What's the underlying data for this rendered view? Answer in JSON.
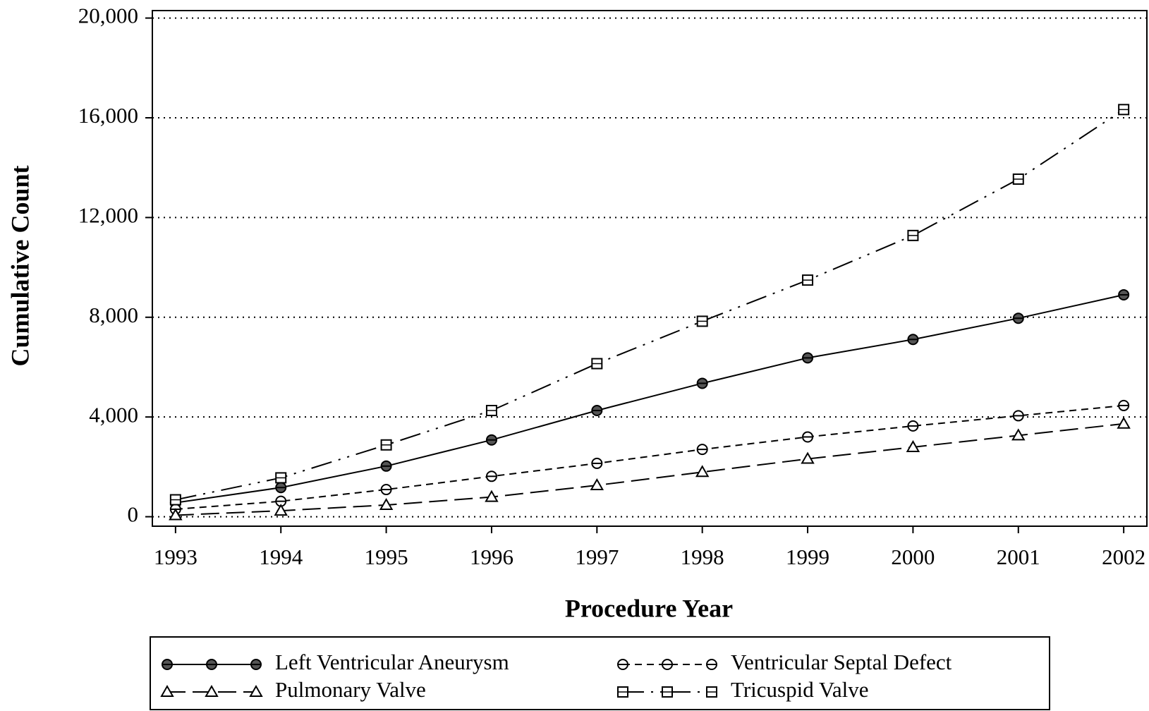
{
  "chart_data": {
    "type": "line",
    "x_label": "Procedure Year",
    "y_label": "Cumulative Count",
    "x": [
      1993,
      1994,
      1995,
      1996,
      1997,
      1998,
      1999,
      2000,
      2001,
      2002
    ],
    "xlim": [
      1992.78,
      2002.22
    ],
    "xticks": [
      1993,
      1994,
      1995,
      1996,
      1997,
      1998,
      1999,
      2000,
      2001,
      2002
    ],
    "ylim": [
      -380,
      20300
    ],
    "yticks": [
      0,
      {
        "value": 4000,
        "label": "4,000"
      },
      {
        "value": 8000,
        "label": "8,000"
      },
      {
        "value": 12000,
        "label": "12,000"
      },
      {
        "value": 16000,
        "label": "16,000"
      },
      {
        "value": 20000,
        "label": "20,000"
      }
    ],
    "grid": true,
    "series": [
      {
        "name": "Left Ventricular Aneurysm",
        "color": "#000000",
        "dash": "solid",
        "marker": "filled-circle",
        "values": [
          560,
          1170,
          2030,
          3080,
          4260,
          5350,
          6370,
          7110,
          7960,
          8900
        ]
      },
      {
        "name": "Ventricular Septal Defect",
        "color": "#000000",
        "dash": "dashed",
        "marker": "circle",
        "values": [
          300,
          620,
          1090,
          1620,
          2140,
          2700,
          3200,
          3640,
          4050,
          4460
        ]
      },
      {
        "name": "Pulmonary Valve",
        "color": "#000000",
        "dash": "longdash",
        "marker": "triangle",
        "values": [
          60,
          240,
          470,
          790,
          1260,
          1790,
          2320,
          2790,
          3260,
          3730
        ]
      },
      {
        "name": "Tricuspid Valve",
        "color": "#000000",
        "dash": "dashdotdot",
        "marker": "square",
        "values": [
          680,
          1560,
          2880,
          4260,
          6140,
          7840,
          9490,
          11280,
          13540,
          16330
        ]
      }
    ]
  }
}
